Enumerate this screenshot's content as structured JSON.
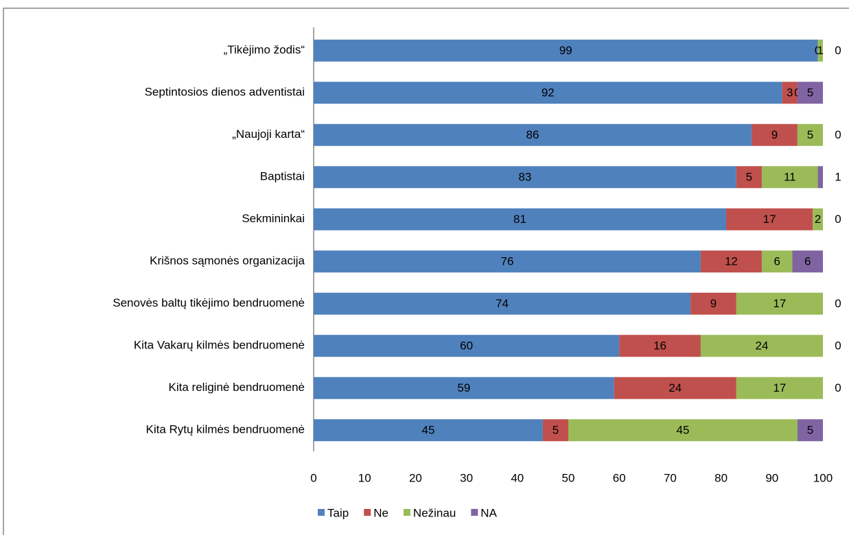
{
  "chart_data": {
    "type": "hbar_stacked",
    "categories": [
      "„Tikėjimo žodis“",
      "Septintosios dienos adventistai",
      "„Naujoji karta“",
      "Baptistai",
      "Sekmininkai",
      "Krišnos sąmonės organizacija",
      "Senovės baltų tikėjimo bendruomenė",
      "Kita Vakarų kilmės bendruomenė",
      "Kita religinė bendruomenė",
      "Kita Rytų kilmės bendruomenė"
    ],
    "series": [
      {
        "name": "Taip",
        "color": "#4f81bd",
        "values": [
          99,
          92,
          86,
          83,
          81,
          76,
          74,
          60,
          59,
          45
        ]
      },
      {
        "name": "Ne",
        "color": "#c0504d",
        "values": [
          0,
          3,
          9,
          5,
          17,
          12,
          9,
          16,
          24,
          5
        ]
      },
      {
        "name": "Nežinau",
        "color": "#9bbb59",
        "values": [
          1,
          0,
          5,
          11,
          2,
          6,
          17,
          24,
          17,
          45
        ]
      },
      {
        "name": "NA",
        "color": "#8064a2",
        "values": [
          0,
          5,
          0,
          1,
          0,
          6,
          0,
          0,
          0,
          5
        ]
      }
    ],
    "xlim": [
      0,
      100
    ],
    "xticks": [
      0,
      10,
      20,
      30,
      40,
      50,
      60,
      70,
      80,
      90,
      100
    ],
    "legend": "bottom"
  }
}
